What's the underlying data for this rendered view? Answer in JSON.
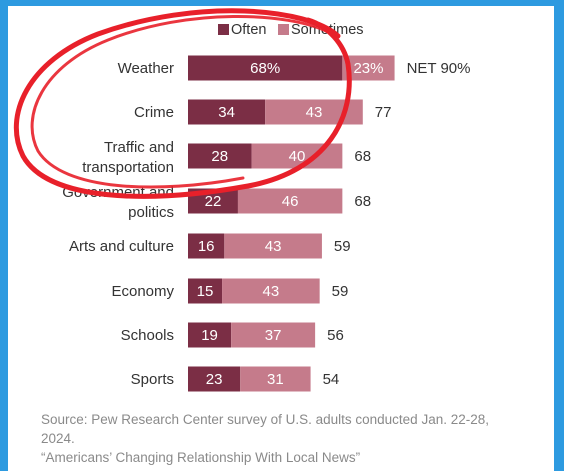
{
  "chart_data": {
    "type": "bar",
    "stacked": true,
    "orientation": "horizontal",
    "categories": [
      "Weather",
      "Crime",
      "Traffic and\ntransportation",
      "Government and\npolitics",
      "Arts and culture",
      "Economy",
      "Schools",
      "Sports"
    ],
    "series": [
      {
        "name": "Often",
        "values": [
          68,
          34,
          28,
          22,
          16,
          15,
          19,
          23
        ],
        "color": "#7b2e45"
      },
      {
        "name": "Sometimes",
        "values": [
          23,
          43,
          40,
          46,
          43,
          43,
          37,
          31
        ],
        "color": "#c57b8b"
      }
    ],
    "net_labels": [
      "NET 90%",
      "77",
      "68",
      "68",
      "59",
      "59",
      "56",
      "54"
    ],
    "often_labels": [
      "68%",
      "34",
      "28",
      "22",
      "16",
      "15",
      "19",
      "23"
    ],
    "sometimes_labels": [
      "23%",
      "43",
      "40",
      "46",
      "43",
      "43",
      "37",
      "31"
    ],
    "legend_placement": "top",
    "grid": false,
    "xlim": [
      0,
      100
    ],
    "source": "Source: Pew Research Center survey of U.S. adults conducted Jan. 22-28, 2024.",
    "report": "“Americans’ Changing Relationship With Local News”",
    "annotation": {
      "color": "#e8202a"
    }
  }
}
